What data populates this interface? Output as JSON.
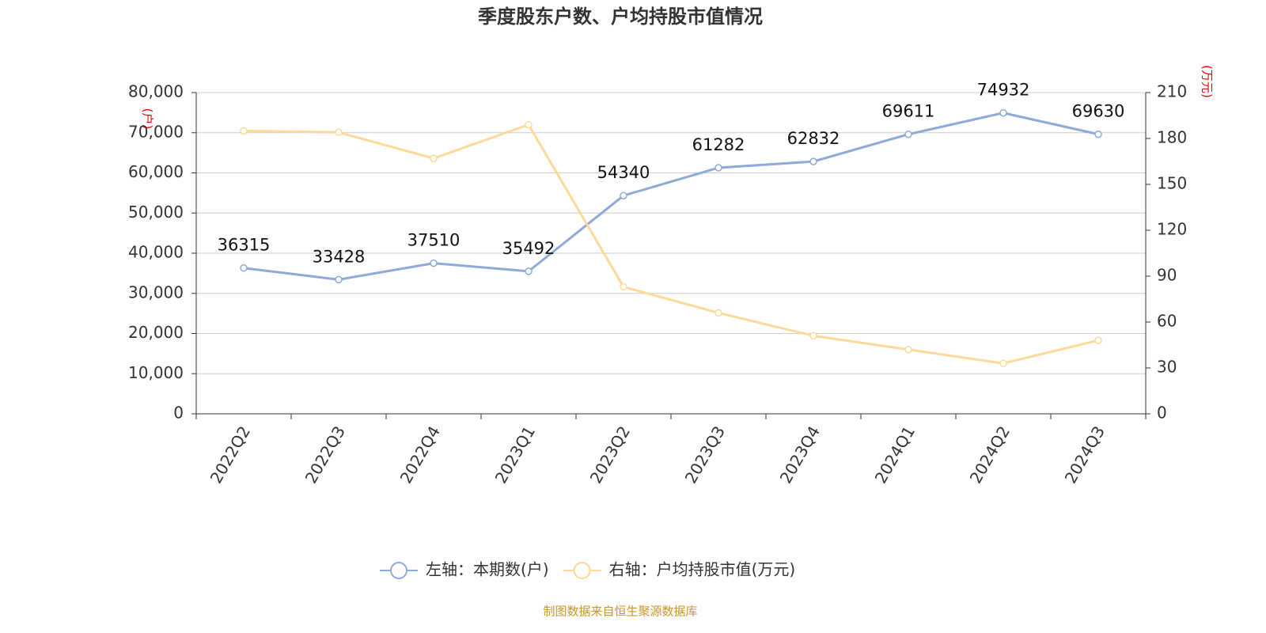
{
  "chart_data": {
    "type": "line",
    "title": "季度股东户数、户均持股市值情况",
    "categories": [
      "2022Q2",
      "2022Q3",
      "2022Q4",
      "2023Q1",
      "2023Q2",
      "2023Q3",
      "2023Q4",
      "2024Q1",
      "2024Q2",
      "2024Q3"
    ],
    "series": [
      {
        "name": "左轴：本期数(户)",
        "color": "#8eaad8",
        "values": [
          36315,
          33428,
          37510,
          35492,
          54340,
          61282,
          62832,
          69611,
          74932,
          69630
        ]
      },
      {
        "name": "右轴：户均持股市值(万元)",
        "color": "#fdd99a",
        "axis": "y2",
        "values": [
          185,
          184,
          167,
          189,
          83,
          66,
          51,
          42,
          33,
          48
        ]
      }
    ],
    "ylabel": "(户)",
    "y2label": "(万元)",
    "ylim": [
      0,
      80000
    ],
    "yticks": [
      {
        "value": 0,
        "label": "0"
      },
      {
        "value": 10000,
        "label": "10,000"
      },
      {
        "value": 20000,
        "label": "20,000"
      },
      {
        "value": 30000,
        "label": "30,000"
      },
      {
        "value": 40000,
        "label": "40,000"
      },
      {
        "value": 50000,
        "label": "50,000"
      },
      {
        "value": 60000,
        "label": "60,000"
      },
      {
        "value": 70000,
        "label": "70,000"
      },
      {
        "value": 80000,
        "label": "80,000"
      }
    ],
    "y2lim": [
      0,
      210
    ],
    "y2ticks": [
      0,
      30,
      60,
      90,
      120,
      150,
      180,
      210
    ],
    "grid": true,
    "legend": "bottom",
    "source": "制图数据来自恒生聚源数据库"
  }
}
